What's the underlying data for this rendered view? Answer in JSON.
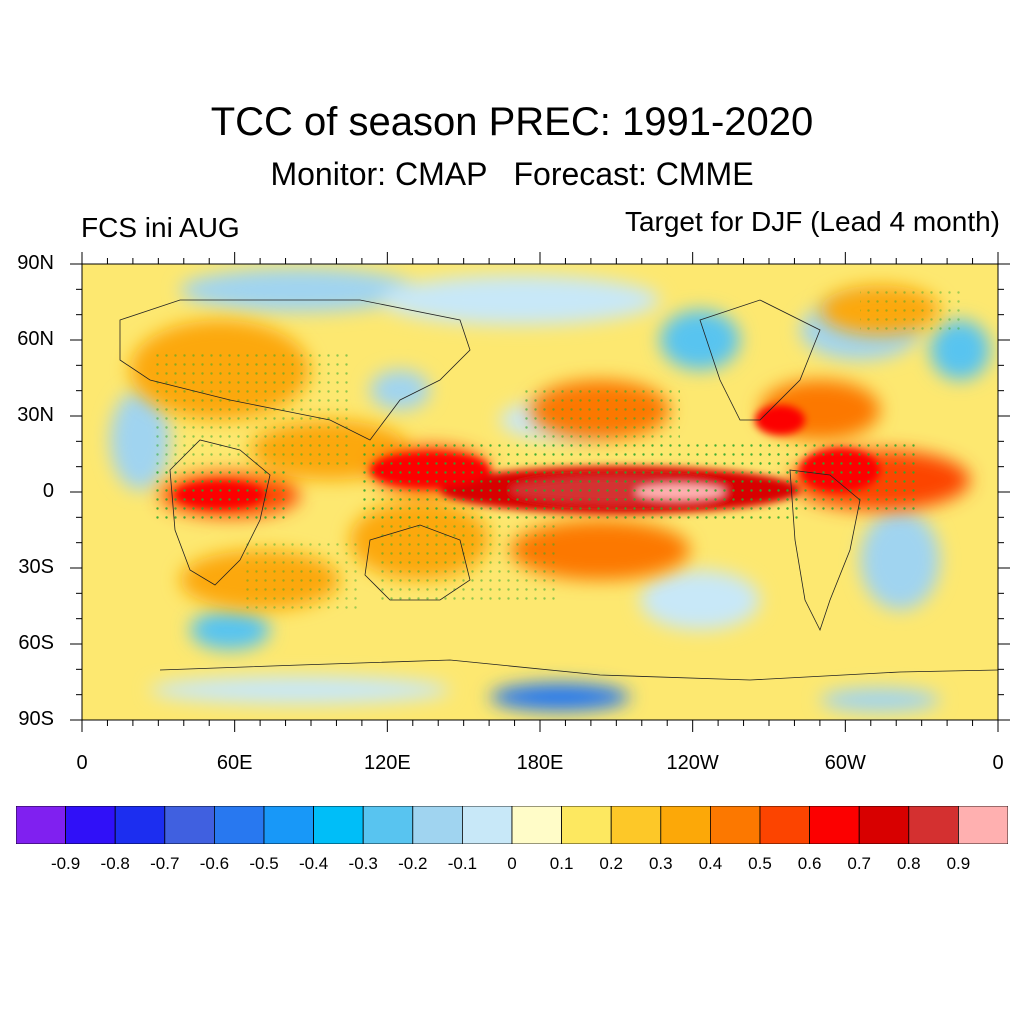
{
  "title": "TCC of season PREC: 1991-2020",
  "subtitle": "Monitor: CMAP   Forecast: CMME",
  "left_label": "FCS ini AUG",
  "right_label": "Target for DJF (Lead 4 month)",
  "lat_ticks": [
    "90N",
    "60N",
    "30N",
    "0",
    "30S",
    "60S",
    "90S"
  ],
  "lon_ticks": [
    "0",
    "60E",
    "120E",
    "180E",
    "120W",
    "60W",
    "0"
  ],
  "legend": {
    "labels": [
      "-0.9",
      "-0.8",
      "-0.7",
      "-0.6",
      "-0.5",
      "-0.4",
      "-0.3",
      "-0.2",
      "-0.1",
      "0",
      "0.1",
      "0.2",
      "0.3",
      "0.4",
      "0.5",
      "0.6",
      "0.7",
      "0.8",
      "0.9"
    ],
    "colors": [
      "#8020f0",
      "#3010f8",
      "#1c2ef0",
      "#4060e0",
      "#2878f0",
      "#1898f8",
      "#00bef8",
      "#58c4f0",
      "#a0d4f0",
      "#c8e8f8",
      "#fffcc8",
      "#fde860",
      "#fdc828",
      "#fca808",
      "#fc7800",
      "#fc4400",
      "#fc0000",
      "#d80000",
      "#d43030",
      "#ffb0b0"
    ]
  }
}
